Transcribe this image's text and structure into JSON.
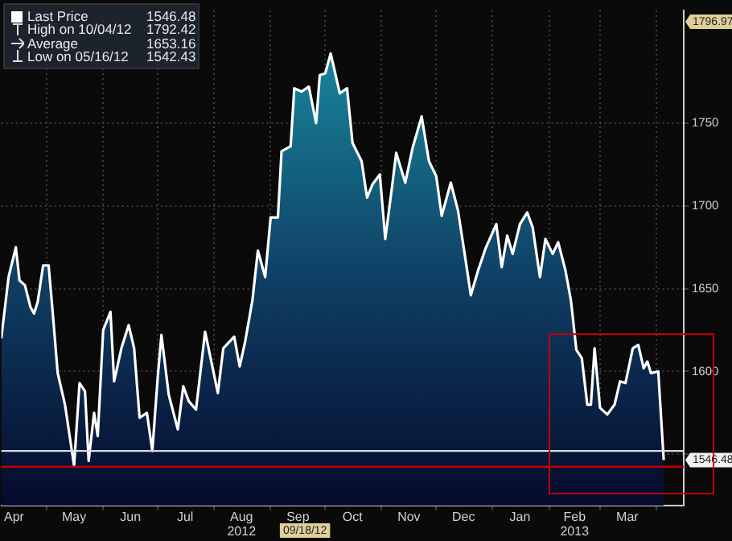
{
  "chart_data": {
    "type": "area",
    "x": [
      "2012-04-06",
      "2012-04-10",
      "2012-04-14",
      "2012-04-16",
      "2012-04-19",
      "2012-04-22",
      "2012-04-24",
      "2012-04-26",
      "2012-04-29",
      "2012-05-02",
      "2012-05-04",
      "2012-05-07",
      "2012-05-11",
      "2012-05-16",
      "2012-05-19",
      "2012-05-22",
      "2012-05-24",
      "2012-05-27",
      "2012-05-29",
      "2012-06-01",
      "2012-06-05",
      "2012-06-07",
      "2012-06-11",
      "2012-06-15",
      "2012-06-18",
      "2012-06-21",
      "2012-06-25",
      "2012-06-28",
      "2012-07-01",
      "2012-07-03",
      "2012-07-07",
      "2012-07-12",
      "2012-07-15",
      "2012-07-18",
      "2012-07-22",
      "2012-07-27",
      "2012-08-03",
      "2012-08-06",
      "2012-08-12",
      "2012-08-15",
      "2012-08-18",
      "2012-08-22",
      "2012-08-25",
      "2012-08-29",
      "2012-09-01",
      "2012-09-05",
      "2012-09-07",
      "2012-09-12",
      "2012-09-14",
      "2012-09-18",
      "2012-09-22",
      "2012-09-26",
      "2012-09-28",
      "2012-10-01",
      "2012-10-04",
      "2012-10-09",
      "2012-10-13",
      "2012-10-16",
      "2012-10-21",
      "2012-10-24",
      "2012-10-27",
      "2012-10-31",
      "2012-11-03",
      "2012-11-07",
      "2012-11-09",
      "2012-11-14",
      "2012-11-18",
      "2012-11-23",
      "2012-11-27",
      "2012-12-01",
      "2012-12-04",
      "2012-12-09",
      "2012-12-13",
      "2012-12-18",
      "2012-12-20",
      "2012-12-24",
      "2012-12-28",
      "2013-01-03",
      "2013-01-06",
      "2013-01-09",
      "2013-01-12",
      "2013-01-16",
      "2013-01-20",
      "2013-01-23",
      "2013-01-27",
      "2013-01-30",
      "2013-02-03",
      "2013-02-06",
      "2013-02-10",
      "2013-02-13",
      "2013-02-16",
      "2013-02-19",
      "2013-02-22",
      "2013-02-24",
      "2013-02-26",
      "2013-03-01",
      "2013-03-05",
      "2013-03-09",
      "2013-03-12",
      "2013-03-15",
      "2013-03-19",
      "2013-03-22",
      "2013-03-25",
      "2013-03-27",
      "2013-03-29",
      "2013-04-02",
      "2013-04-05"
    ],
    "series": [
      {
        "name": "Last Price",
        "color": "#ffffff",
        "values": [
          1620,
          1657,
          1675,
          1655,
          1652,
          1639,
          1635,
          1642,
          1664,
          1664,
          1639,
          1599,
          1580,
          1543,
          1593,
          1588,
          1546,
          1575,
          1561,
          1625,
          1636,
          1594,
          1614,
          1628,
          1614,
          1572,
          1575,
          1552,
          1597,
          1622,
          1586,
          1565,
          1591,
          1582,
          1577,
          1624,
          1587,
          1614,
          1621,
          1603,
          1618,
          1643,
          1673,
          1657,
          1693,
          1693,
          1733,
          1736,
          1771,
          1769,
          1772,
          1750,
          1779,
          1780,
          1792,
          1768,
          1771,
          1738,
          1727,
          1705,
          1713,
          1719,
          1680,
          1714,
          1732,
          1714,
          1735,
          1754,
          1727,
          1718,
          1694,
          1714,
          1697,
          1661,
          1646,
          1661,
          1674,
          1689,
          1663,
          1682,
          1671,
          1689,
          1696,
          1687,
          1657,
          1680,
          1671,
          1678,
          1661,
          1643,
          1613,
          1608,
          1580,
          1580,
          1614,
          1578,
          1574,
          1580,
          1594,
          1593,
          1614,
          1616,
          1602,
          1606,
          1599,
          1600,
          1546.48
        ]
      }
    ],
    "xlim": [
      "2012-04-06",
      "2013-04-16"
    ],
    "xticks": [
      {
        "value": "2012-04-13",
        "label": "Apr"
      },
      {
        "value": "2012-05-01",
        "label": null
      },
      {
        "value": "2012-05-16",
        "label": "May"
      },
      {
        "value": "2012-06-01",
        "label": null
      },
      {
        "value": "2012-06-16",
        "label": "Jun"
      },
      {
        "value": "2012-07-01",
        "label": null
      },
      {
        "value": "2012-07-16",
        "label": "Jul"
      },
      {
        "value": "2012-08-01",
        "label": null
      },
      {
        "value": "2012-08-16",
        "label": "Aug\n2012"
      },
      {
        "value": "2012-09-01",
        "label": null
      },
      {
        "value": "2012-09-16",
        "label": "Sep"
      },
      {
        "value": "2012-10-01",
        "label": null
      },
      {
        "value": "2012-10-16",
        "label": "Oct"
      },
      {
        "value": "2012-11-01",
        "label": null
      },
      {
        "value": "2012-11-16",
        "label": "Nov"
      },
      {
        "value": "2012-12-01",
        "label": null
      },
      {
        "value": "2012-12-16",
        "label": "Dec"
      },
      {
        "value": "2013-01-01",
        "label": null
      },
      {
        "value": "2013-01-16",
        "label": "Jan"
      },
      {
        "value": "2013-02-01",
        "label": null
      },
      {
        "value": "2013-02-15",
        "label": "Feb\n2013"
      },
      {
        "value": "2013-03-01",
        "label": null
      },
      {
        "value": "2013-03-16",
        "label": "Mar"
      },
      {
        "value": "2013-04-01",
        "label": null
      }
    ],
    "ylim": [
      1519,
      1818
    ],
    "yticks": [
      {
        "value": 1550,
        "label": null
      },
      1600,
      1650,
      1700,
      1750
    ],
    "grid": true,
    "legend": "top left",
    "marker": "none",
    "line_style": "solid",
    "ref_lines": [
      {
        "axis": "y",
        "value": 1552,
        "color": "#d8d8e8"
      },
      {
        "axis": "y",
        "value": 1542.43,
        "color": "#c00000"
      }
    ],
    "value_labels": [
      null,
      null,
      null,
      null,
      null,
      null,
      null,
      null,
      null,
      null,
      null,
      null,
      null,
      null,
      null,
      null,
      null,
      null,
      null,
      null,
      null,
      null,
      null,
      null,
      null,
      null,
      null,
      null,
      null,
      null,
      null,
      null,
      null,
      null,
      null,
      null,
      null,
      null,
      null,
      null,
      null,
      null,
      null,
      null,
      null,
      null,
      null,
      null,
      null,
      null,
      null,
      null,
      null,
      null,
      null,
      null,
      null,
      null,
      null,
      null,
      null,
      null,
      null,
      null,
      null,
      null,
      null,
      null,
      null,
      null,
      null,
      null,
      null,
      null,
      null,
      null,
      null,
      null,
      null,
      null,
      null,
      null,
      null,
      null,
      null,
      null,
      null,
      null,
      null,
      null,
      null,
      null,
      null,
      null,
      null,
      null,
      null,
      null,
      null,
      null,
      null,
      null,
      null,
      null,
      null,
      null,
      "1546.48"
    ],
    "annotations": [
      "1546.48",
      "High on 10/04/12",
      "1792.42",
      "Average",
      "1653.16",
      "Low on 05/16/12",
      "1542.43",
      "1796.97",
      "09/18/12"
    ]
  }
}
